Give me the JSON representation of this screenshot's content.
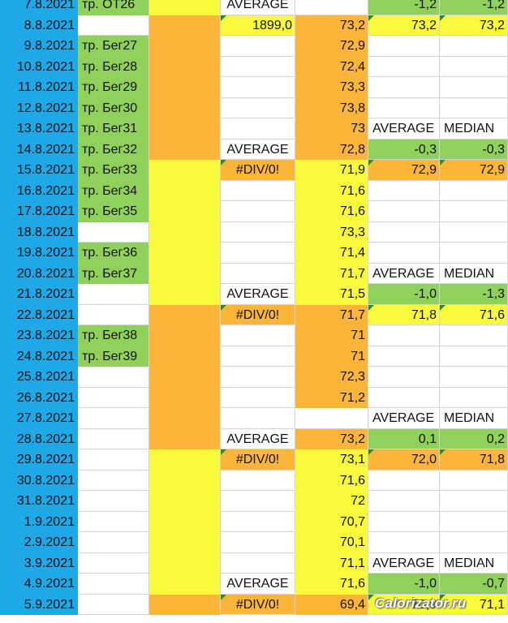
{
  "colors": {
    "date_bg": "#1ea8e8",
    "workout_bg": "#8fd15a",
    "yellow": "#fafa3c",
    "orange": "#fbb63a",
    "green": "#8fd15a",
    "white": "#ffffff",
    "comment_marker": "#2e8b2e"
  },
  "watermark": "Calorizator.ru",
  "rows": [
    {
      "date": "7.8.2021",
      "workout": "тр. ОТ26",
      "c": "AVERAGE",
      "d": "",
      "e": "-1,2",
      "f": "-1,2"
    },
    {
      "date": "8.8.2021",
      "workout": "",
      "c": "1899,0",
      "d": "73,2",
      "e": "73,2",
      "f": "73,2"
    },
    {
      "date": "9.8.2021",
      "workout": "тр. Бег27",
      "c": "",
      "d": "72,9",
      "e": "",
      "f": ""
    },
    {
      "date": "10.8.2021",
      "workout": "тр. Бег28",
      "c": "",
      "d": "72,4",
      "e": "",
      "f": ""
    },
    {
      "date": "11.8.2021",
      "workout": "тр. Бег29",
      "c": "",
      "d": "73,3",
      "e": "",
      "f": ""
    },
    {
      "date": "12.8.2021",
      "workout": "тр. Бег30",
      "c": "",
      "d": "73,8",
      "e": "",
      "f": ""
    },
    {
      "date": "13.8.2021",
      "workout": "тр. Бег31",
      "c": "",
      "d": "73",
      "e": "AVERAGE",
      "f": "MEDIAN"
    },
    {
      "date": "14.8.2021",
      "workout": "тр. Бег32",
      "c": "AVERAGE",
      "d": "72,8",
      "e": "-0,3",
      "f": "-0,3"
    },
    {
      "date": "15.8.2021",
      "workout": "тр. Бег33",
      "c": "#DIV/0!",
      "d": "71,9",
      "e": "72,9",
      "f": "72,9"
    },
    {
      "date": "16.8.2021",
      "workout": "тр. Бег34",
      "c": "",
      "d": "71,6",
      "e": "",
      "f": ""
    },
    {
      "date": "17.8.2021",
      "workout": "тр. Бег35",
      "c": "",
      "d": "71,6",
      "e": "",
      "f": ""
    },
    {
      "date": "18.8.2021",
      "workout": "",
      "c": "",
      "d": "73,3",
      "e": "",
      "f": ""
    },
    {
      "date": "19.8.2021",
      "workout": "тр. Бег36",
      "c": "",
      "d": "71,4",
      "e": "",
      "f": ""
    },
    {
      "date": "20.8.2021",
      "workout": "тр. Бег37",
      "c": "",
      "d": "71,7",
      "e": "AVERAGE",
      "f": "MEDIAN"
    },
    {
      "date": "21.8.2021",
      "workout": "",
      "c": "AVERAGE",
      "d": "71,5",
      "e": "-1,0",
      "f": "-1,3"
    },
    {
      "date": "22.8.2021",
      "workout": "",
      "c": "#DIV/0!",
      "d": "71,7",
      "e": "71,8",
      "f": "71,6"
    },
    {
      "date": "23.8.2021",
      "workout": "тр. Бег38",
      "c": "",
      "d": "71",
      "e": "",
      "f": ""
    },
    {
      "date": "24.8.2021",
      "workout": "тр. Бег39",
      "c": "",
      "d": "71",
      "e": "",
      "f": ""
    },
    {
      "date": "25.8.2021",
      "workout": "",
      "c": "",
      "d": "72,3",
      "e": "",
      "f": ""
    },
    {
      "date": "26.8.2021",
      "workout": "",
      "c": "",
      "d": "71,2",
      "e": "",
      "f": ""
    },
    {
      "date": "27.8.2021",
      "workout": "",
      "c": "",
      "d": "",
      "e": "AVERAGE",
      "f": "MEDIAN"
    },
    {
      "date": "28.8.2021",
      "workout": "",
      "c": "AVERAGE",
      "d": "73,2",
      "e": "0,1",
      "f": "0,2"
    },
    {
      "date": "29.8.2021",
      "workout": "",
      "c": "#DIV/0!",
      "d": "73,1",
      "e": "72,0",
      "f": "71,8"
    },
    {
      "date": "30.8.2021",
      "workout": "",
      "c": "",
      "d": "71,6",
      "e": "",
      "f": ""
    },
    {
      "date": "31.8.2021",
      "workout": "",
      "c": "",
      "d": "72",
      "e": "",
      "f": ""
    },
    {
      "date": "1.9.2021",
      "workout": "",
      "c": "",
      "d": "70,7",
      "e": "",
      "f": ""
    },
    {
      "date": "2.9.2021",
      "workout": "",
      "c": "",
      "d": "70,1",
      "e": "",
      "f": ""
    },
    {
      "date": "3.9.2021",
      "workout": "",
      "c": "",
      "d": "71,1",
      "e": "AVERAGE",
      "f": "MEDIAN"
    },
    {
      "date": "4.9.2021",
      "workout": "",
      "c": "AVERAGE",
      "d": "71,6",
      "e": "-1,0",
      "f": "-0,7"
    },
    {
      "date": "5.9.2021",
      "workout": "",
      "c": "#DIV/0!",
      "d": "69,4",
      "e": "70,9",
      "f": "71,1"
    }
  ]
}
